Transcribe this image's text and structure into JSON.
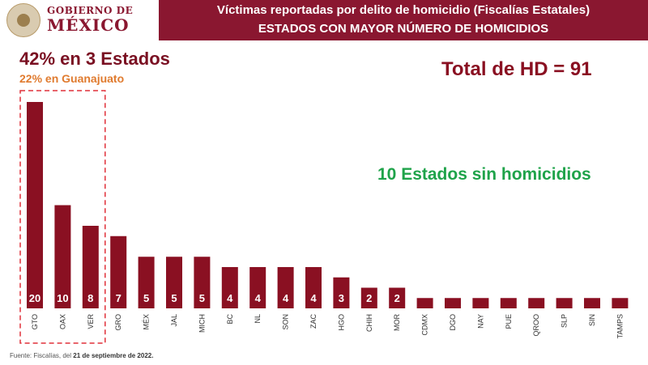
{
  "header": {
    "logo_line1": "GOBIERNO DE",
    "logo_line2": "MÉXICO",
    "title": "Víctimas reportadas por delito de homicidio (Fiscalías Estatales)",
    "subtitle": "ESTADOS CON MAYOR NÚMERO DE HOMICIDIOS"
  },
  "annotations": {
    "headline": "42% en 3 Estados",
    "subheadline": "22% en Guanajuato",
    "total": "Total de HD = 91",
    "zero_states": "10 Estados sin homicidios"
  },
  "footer": {
    "source_prefix": "Fuente: Fiscalías, del",
    "source_date": "21 de septiembre de 2022."
  },
  "colors": {
    "bar": "#8a1022",
    "header": "#8a1730",
    "highlight_box": "#e0303a",
    "zero_note": "#1fa34a",
    "subheadline": "#e07b2f"
  },
  "chart_data": {
    "type": "bar",
    "categories": [
      "GTO",
      "OAX",
      "VER",
      "GRO",
      "MÉX",
      "JAL",
      "MICH",
      "BC",
      "NL",
      "SON",
      "ZAC",
      "HGO",
      "CHIH",
      "MOR",
      "CDMX",
      "DGO",
      "NAY",
      "PUE",
      "QROO",
      "SLP",
      "SIN",
      "TAMPS"
    ],
    "values": [
      20,
      10,
      8,
      7,
      5,
      5,
      5,
      4,
      4,
      4,
      4,
      3,
      2,
      2,
      1,
      1,
      1,
      1,
      1,
      1,
      1,
      1
    ],
    "data_labels": [
      "20",
      "10",
      "8",
      "7",
      "5",
      "5",
      "5",
      "4",
      "4",
      "4",
      "4",
      "3",
      "2",
      "2",
      "",
      "",
      "",
      "",
      "",
      "",
      "",
      ""
    ],
    "highlighted_categories": [
      "GTO",
      "OAX",
      "VER"
    ],
    "title": "Víctimas reportadas por delito de homicidio (Fiscalías Estatales)",
    "xlabel": "",
    "ylabel": "",
    "ylim": [
      0,
      20
    ],
    "grid": false,
    "legend": "none"
  }
}
